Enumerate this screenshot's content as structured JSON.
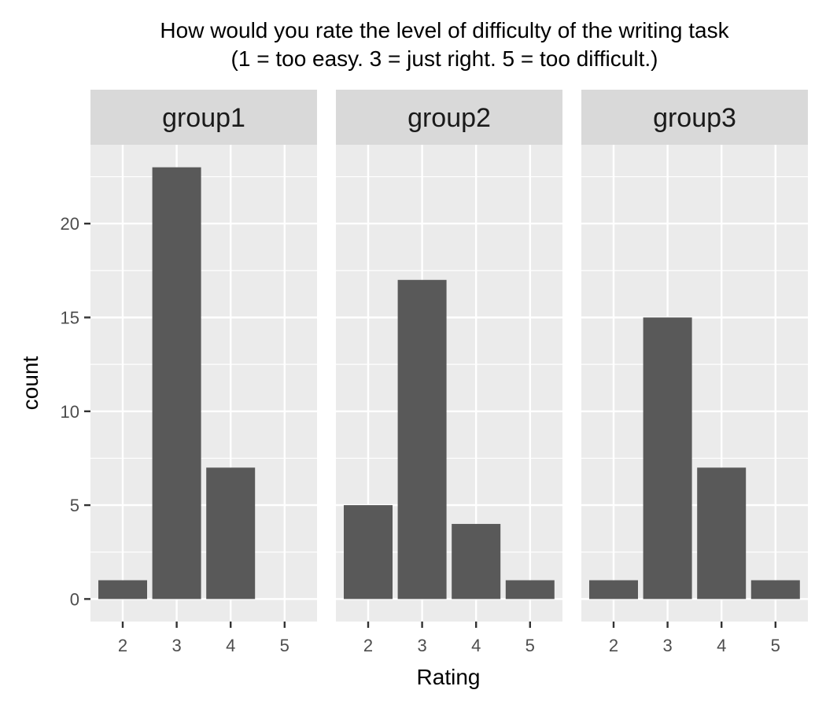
{
  "chart_data": {
    "type": "bar",
    "title": [
      "How would you rate the level of difficulty of the writing task",
      "(1 = too easy. 3 = just right. 5 = too difficult.)"
    ],
    "xlabel": "Rating",
    "ylabel": "count",
    "categories": [
      "2",
      "3",
      "4",
      "5"
    ],
    "y_ticks": [
      0,
      5,
      10,
      15,
      20
    ],
    "ylim": [
      -1.2,
      24.2
    ],
    "grid": true,
    "legend": "none",
    "facets": [
      {
        "label": "group1",
        "values": [
          1,
          23,
          7,
          0
        ]
      },
      {
        "label": "group2",
        "values": [
          5,
          17,
          4,
          1
        ]
      },
      {
        "label": "group3",
        "values": [
          1,
          15,
          7,
          1
        ]
      }
    ],
    "colors": {
      "bar": "#595959",
      "panel_background": "#ebebeb",
      "strip_background": "#d9d9d9",
      "grid": "#ffffff",
      "axis_ticks": "#333333"
    }
  }
}
